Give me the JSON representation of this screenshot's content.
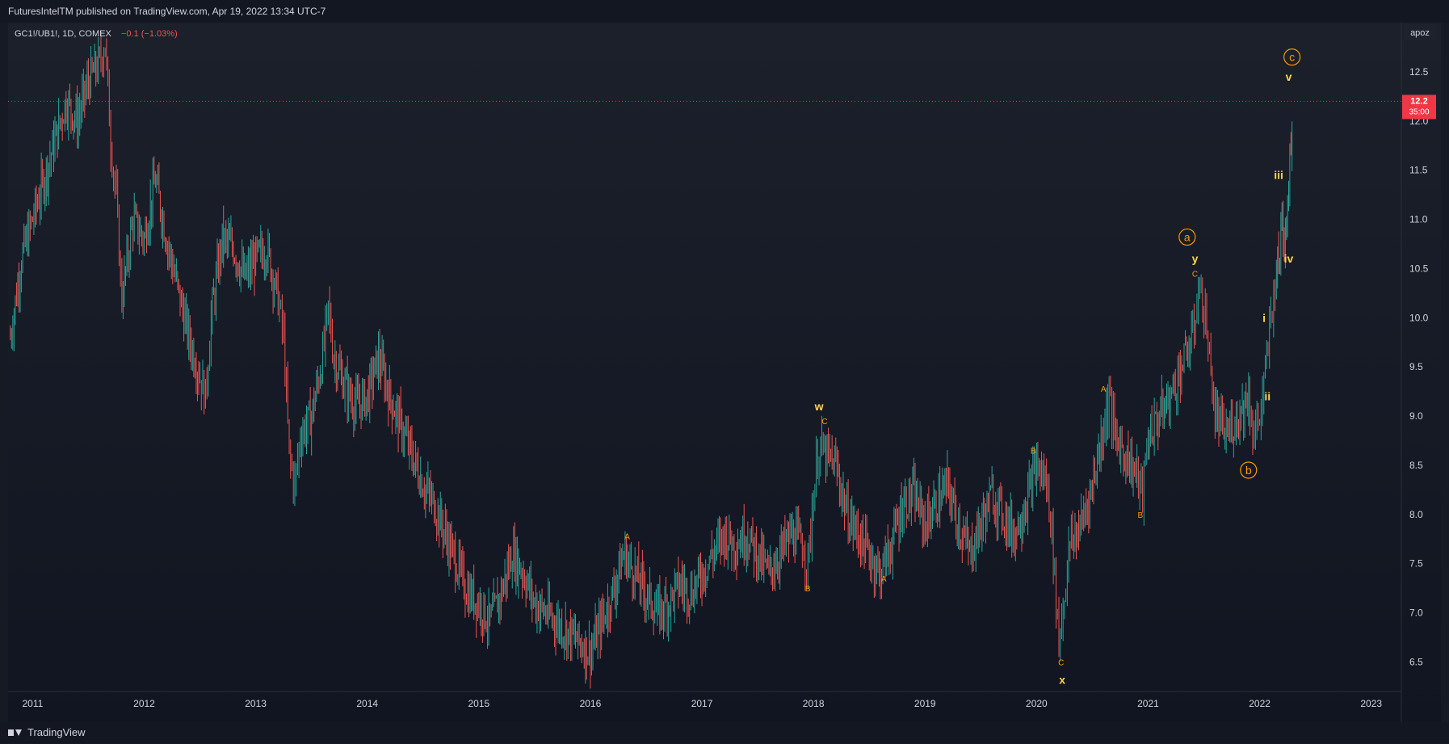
{
  "header": {
    "publish_line": "FuturesIntelTM published on TradingView.com, Apr 19, 2022 13:34 UTC-7"
  },
  "legend": {
    "symbol": "GC1!/UB1!, 1D, COMEX",
    "change": "−0.1 (−1.03%)"
  },
  "scale_button": "apoz",
  "price_tag": {
    "value": "12.2",
    "countdown": "35:00"
  },
  "footer": {
    "brand": "TradingView",
    "brand_icon": "tradingview-logo-icon"
  },
  "colors": {
    "background_top": "#1a1e29",
    "background_bottom": "#111520",
    "up": "#26a69a",
    "down": "#ef5350",
    "wave_orange": "#ff9800",
    "wave_yellow": "#ffd54f",
    "price_line": "#f23645",
    "axis_text": "#d1d4dc"
  },
  "chart_data": {
    "type": "line",
    "note_type": "ohlc-bars",
    "x_tick_labels": [
      "2011",
      "2012",
      "2013",
      "2014",
      "2015",
      "2016",
      "2017",
      "2018",
      "2019",
      "2020",
      "2021",
      "2022",
      "2023"
    ],
    "x_ticks": [
      2011,
      2012,
      2013,
      2014,
      2015,
      2016,
      2017,
      2018,
      2019,
      2020,
      2021,
      2022,
      2023
    ],
    "y_tick_labels": [
      "12.5",
      "12.0",
      "11.5",
      "11.0",
      "10.5",
      "10.0",
      "9.5",
      "9.0",
      "8.5",
      "8.0",
      "7.5",
      "7.0",
      "6.5"
    ],
    "y_ticks": [
      12.5,
      12.0,
      11.5,
      11.0,
      10.5,
      10.0,
      9.5,
      9.0,
      8.5,
      8.0,
      7.5,
      7.0,
      6.5
    ],
    "xlim": [
      2010.78,
      2023.27
    ],
    "ylim": [
      6.2,
      13.0
    ],
    "last_price": 12.2,
    "series": [
      {
        "x": [
          2010.8,
          2010.9,
          2011.0,
          2011.1,
          2011.2,
          2011.3,
          2011.4,
          2011.5,
          2011.6,
          2011.65,
          2011.7,
          2011.75,
          2011.8,
          2011.9,
          2012.0,
          2012.1,
          2012.2,
          2012.3,
          2012.4,
          2012.5,
          2012.55,
          2012.6,
          2012.7,
          2012.8,
          2012.9,
          2013.0,
          2013.1,
          2013.2,
          2013.25,
          2013.3,
          2013.35,
          2013.4,
          2013.5,
          2013.6,
          2013.65,
          2013.7,
          2013.8,
          2013.9,
          2014.0,
          2014.1,
          2014.2,
          2014.3,
          2014.4,
          2014.5,
          2014.6,
          2014.7,
          2014.8,
          2014.9,
          2015.0,
          2015.1,
          2015.2,
          2015.3,
          2015.4,
          2015.5,
          2015.6,
          2015.7,
          2015.8,
          2015.9,
          2016.0,
          2016.1,
          2016.2,
          2016.3,
          2016.4,
          2016.5,
          2016.6,
          2016.7,
          2016.8,
          2016.9,
          2017.0,
          2017.1,
          2017.2,
          2017.3,
          2017.4,
          2017.5,
          2017.6,
          2017.7,
          2017.8,
          2017.9,
          2017.95,
          2018.0,
          2018.05,
          2018.1,
          2018.2,
          2018.3,
          2018.4,
          2018.5,
          2018.6,
          2018.7,
          2018.8,
          2018.9,
          2019.0,
          2019.1,
          2019.2,
          2019.3,
          2019.4,
          2019.5,
          2019.6,
          2019.7,
          2019.8,
          2019.9,
          2020.0,
          2020.1,
          2020.15,
          2020.2,
          2020.25,
          2020.3,
          2020.4,
          2020.5,
          2020.6,
          2020.65,
          2020.7,
          2020.8,
          2020.9,
          2020.95,
          2021.0,
          2021.1,
          2021.2,
          2021.3,
          2021.4,
          2021.45,
          2021.5,
          2021.55,
          2021.6,
          2021.7,
          2021.8,
          2021.9,
          2021.95,
          2022.0,
          2022.05,
          2022.1,
          2022.15,
          2022.18,
          2022.2,
          2022.22,
          2022.25,
          2022.28,
          2022.3
        ],
        "y": [
          9.8,
          10.6,
          11.0,
          11.4,
          11.8,
          12.2,
          12.0,
          12.4,
          12.6,
          12.8,
          11.8,
          11.2,
          10.2,
          11.0,
          10.8,
          11.4,
          10.8,
          10.3,
          9.8,
          9.4,
          9.2,
          10.0,
          10.8,
          10.7,
          10.4,
          10.6,
          10.7,
          10.2,
          9.8,
          8.6,
          8.3,
          8.8,
          9.0,
          9.6,
          10.1,
          9.6,
          9.3,
          9.1,
          9.2,
          9.6,
          9.2,
          8.9,
          8.6,
          8.3,
          8.1,
          7.8,
          7.5,
          7.2,
          7.1,
          6.9,
          7.2,
          7.6,
          7.4,
          7.1,
          7.0,
          6.9,
          6.8,
          6.7,
          6.6,
          6.9,
          7.2,
          7.6,
          7.4,
          7.2,
          7.0,
          7.1,
          7.3,
          7.2,
          7.4,
          7.6,
          7.8,
          7.7,
          7.8,
          7.6,
          7.4,
          7.6,
          7.8,
          7.7,
          7.5,
          8.2,
          8.7,
          8.6,
          8.5,
          8.0,
          7.8,
          7.6,
          7.4,
          7.7,
          8.1,
          8.2,
          7.9,
          8.1,
          8.3,
          7.9,
          7.6,
          7.9,
          8.2,
          8.0,
          7.8,
          8.1,
          8.5,
          8.3,
          7.6,
          6.7,
          7.2,
          7.7,
          7.9,
          8.3,
          8.9,
          9.2,
          8.8,
          8.6,
          8.4,
          8.2,
          8.8,
          9.0,
          9.2,
          9.5,
          9.8,
          10.3,
          10.1,
          9.6,
          9.0,
          8.8,
          9.0,
          9.2,
          8.8,
          9.0,
          9.4,
          10.0,
          10.5,
          10.6,
          11.1,
          10.8,
          11.2,
          11.8,
          12.3
        ]
      }
    ],
    "wave_labels": [
      {
        "text": "A",
        "x": 2016.33,
        "y": 7.78,
        "color": "orange",
        "size": "small"
      },
      {
        "text": "B",
        "x": 2017.95,
        "y": 7.25,
        "color": "orange",
        "size": "small"
      },
      {
        "text": "C",
        "x": 2018.1,
        "y": 8.95,
        "color": "orange",
        "size": "small"
      },
      {
        "text": "w",
        "x": 2018.05,
        "y": 9.1,
        "color": "yellow",
        "size": "medium"
      },
      {
        "text": "A",
        "x": 2018.63,
        "y": 7.35,
        "color": "orange",
        "size": "small"
      },
      {
        "text": "B",
        "x": 2019.97,
        "y": 8.65,
        "color": "orange",
        "size": "small"
      },
      {
        "text": "C",
        "x": 2020.22,
        "y": 6.5,
        "color": "orange",
        "size": "small"
      },
      {
        "text": "x",
        "x": 2020.23,
        "y": 6.32,
        "color": "yellow",
        "size": "medium"
      },
      {
        "text": "A",
        "x": 2020.6,
        "y": 9.28,
        "color": "orange",
        "size": "small"
      },
      {
        "text": "B",
        "x": 2020.93,
        "y": 8.0,
        "color": "orange",
        "size": "small"
      },
      {
        "text": "C",
        "x": 2021.42,
        "y": 10.45,
        "color": "orange",
        "size": "small"
      },
      {
        "text": "y",
        "x": 2021.42,
        "y": 10.6,
        "color": "yellow",
        "size": "medium"
      },
      {
        "text": "a",
        "x": 2021.35,
        "y": 10.82,
        "color": "orange",
        "size": "circled"
      },
      {
        "text": "b",
        "x": 2021.9,
        "y": 8.45,
        "color": "orange",
        "size": "circled"
      },
      {
        "text": "i",
        "x": 2022.04,
        "y": 10.0,
        "color": "yellow",
        "size": "medium"
      },
      {
        "text": "ii",
        "x": 2022.07,
        "y": 9.2,
        "color": "yellow",
        "size": "medium"
      },
      {
        "text": "iii",
        "x": 2022.17,
        "y": 11.45,
        "color": "yellow",
        "size": "medium"
      },
      {
        "text": "iv",
        "x": 2022.26,
        "y": 10.6,
        "color": "yellow",
        "size": "medium"
      },
      {
        "text": "v",
        "x": 2022.26,
        "y": 12.45,
        "color": "yellow",
        "size": "medium"
      },
      {
        "text": "c",
        "x": 2022.29,
        "y": 12.65,
        "color": "orange",
        "size": "circled"
      }
    ]
  }
}
